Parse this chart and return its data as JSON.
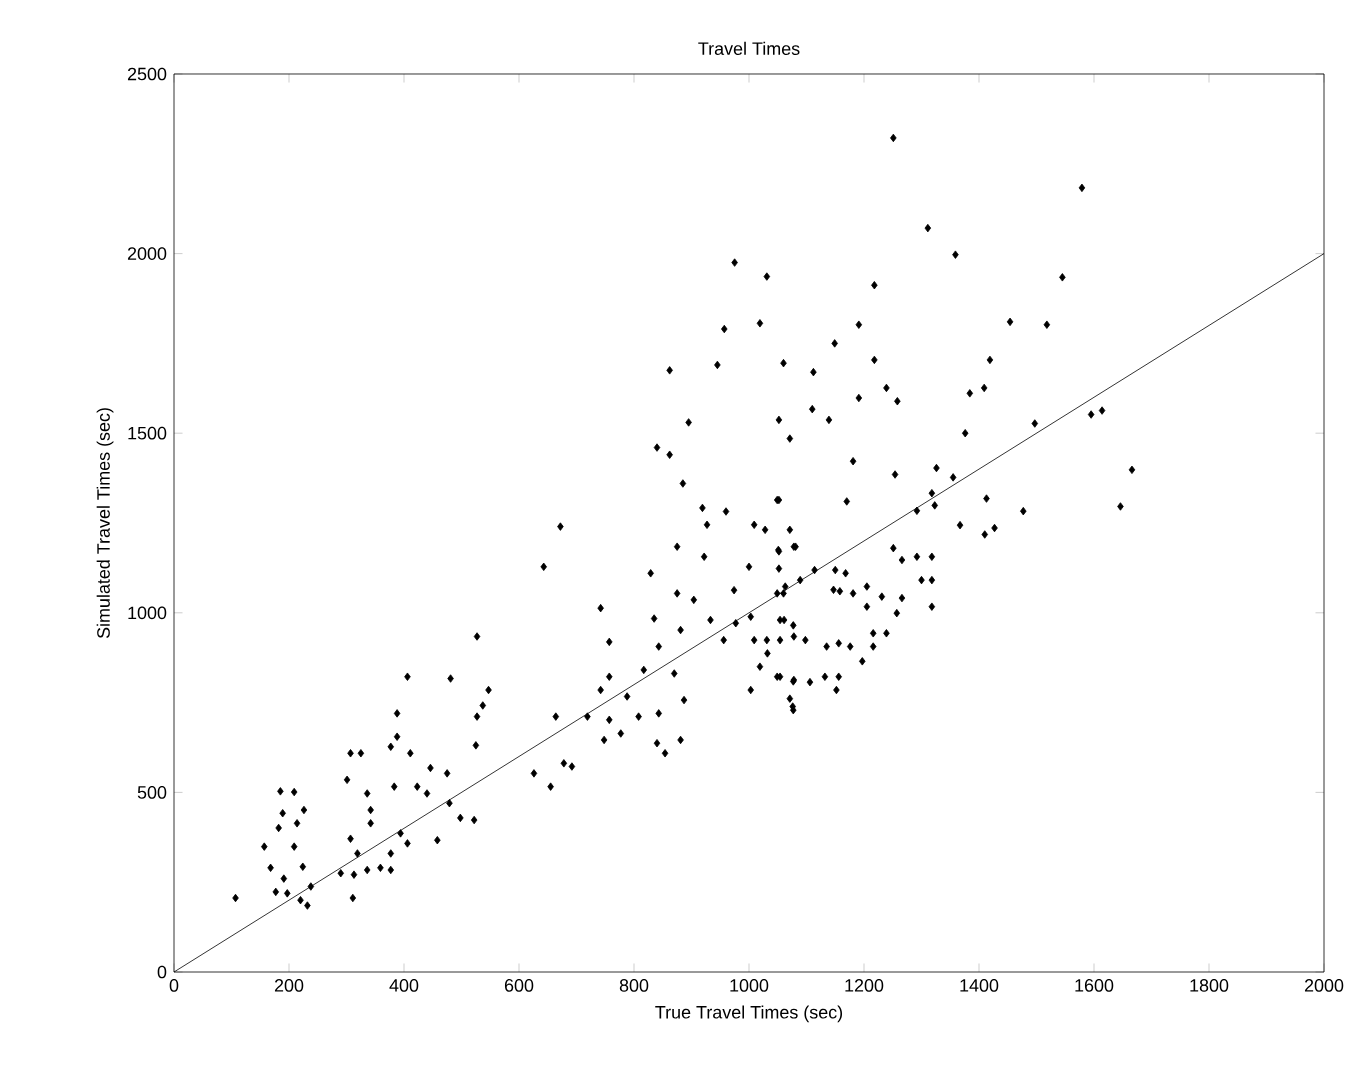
{
  "chart_data": {
    "type": "scatter",
    "title": "Travel Times",
    "xlabel": "True Travel Times (sec)",
    "ylabel": "Simulated Travel Times (sec)",
    "xlim": [
      0,
      2000
    ],
    "ylim": [
      0,
      2500
    ],
    "xticks": [
      0,
      200,
      400,
      600,
      800,
      1000,
      1200,
      1400,
      1600,
      1800,
      2000
    ],
    "yticks": [
      0,
      500,
      1000,
      1500,
      2000,
      2500
    ],
    "grid": false,
    "series": [
      {
        "marker": "diamond",
        "color": "#000000",
        "x": [
          107,
          157,
          168,
          191,
          177,
          197,
          220,
          232,
          238,
          182,
          189,
          185,
          209,
          226,
          214,
          209,
          224,
          307,
          325,
          301,
          336,
          342,
          342,
          307,
          319,
          290,
          313,
          336,
          359,
          377,
          311,
          383,
          388,
          388,
          406,
          377,
          411,
          423,
          440,
          446,
          475,
          479,
          481,
          498,
          522,
          458,
          394,
          406,
          377,
          527,
          527,
          537,
          547,
          525,
          643,
          672,
          664,
          626,
          655,
          678,
          692,
          719,
          742,
          757,
          757,
          742,
          748,
          757,
          777,
          788,
          808,
          817,
          829,
          835,
          843,
          843,
          840,
          854,
          875,
          885,
          875,
          904,
          881,
          870,
          887,
          881,
          922,
          919,
          927,
          960,
          933,
          956,
          974,
          977,
          1003,
          1000,
          1009,
          1028,
          1003,
          1009,
          1032,
          1049,
          1051,
          1078,
          1049,
          1061,
          1078,
          1049,
          1078,
          1076,
          1218,
          1191,
          1149,
          1112,
          1110,
          1139,
          1218,
          1239,
          1258,
          1191,
          1181,
          1170,
          1254,
          1326,
          1355,
          1318,
          1323,
          1292,
          1376,
          1384,
          1409,
          1419,
          1454,
          1518,
          1545,
          1497,
          1595,
          1614,
          1666,
          1646,
          1477,
          1413,
          1367,
          1410,
          1427,
          1251,
          1266,
          1292,
          1318,
          1300,
          1318,
          1318,
          1257,
          1266,
          1231,
          1205,
          1205,
          1181,
          1150,
          1168,
          1147,
          1158,
          1114,
          1089,
          1063,
          1060,
          1081,
          1052,
          1052,
          1054,
          1077,
          1054,
          1098,
          1031,
          1019,
          1054,
          1077,
          1106,
          1132,
          1156,
          1152,
          1135,
          1156,
          1176,
          1197,
          1216,
          1239,
          1216,
          1071,
          1077,
          1071,
          1052,
          1019,
          1031,
          1060,
          1071,
          1052,
          1251,
          1311,
          1359,
          1579,
          975,
          957,
          945,
          862,
          840,
          862,
          895
        ],
        "values": [
          206,
          349,
          290,
          260,
          223,
          219,
          200,
          185,
          238,
          401,
          442,
          503,
          501,
          451,
          414,
          349,
          293,
          609,
          609,
          535,
          497,
          451,
          414,
          371,
          330,
          275,
          271,
          284,
          290,
          284,
          206,
          516,
          720,
          655,
          822,
          627,
          609,
          516,
          497,
          568,
          553,
          470,
          817,
          429,
          423,
          367,
          386,
          358,
          330,
          934,
          711,
          742,
          785,
          631,
          1128,
          1240,
          711,
          553,
          516,
          581,
          572,
          711,
          1013,
          919,
          822,
          785,
          646,
          702,
          664,
          767,
          711,
          841,
          1110,
          984,
          906,
          720,
          637,
          609,
          1184,
          1360,
          1054,
          1036,
          952,
          831,
          757,
          646,
          1156,
          1292,
          1245,
          1282,
          980,
          924,
          1063,
          971,
          989,
          1128,
          1245,
          1231,
          785,
          924,
          887,
          1314,
          1175,
          1184,
          1054,
          980,
          934,
          822,
          813,
          739,
          1912,
          1802,
          1750,
          1670,
          1567,
          1537,
          1704,
          1626,
          1589,
          1598,
          1422,
          1310,
          1385,
          1403,
          1377,
          1333,
          1299,
          1284,
          1500,
          1611,
          1626,
          1704,
          1810,
          1802,
          1934,
          1527,
          1552,
          1563,
          1398,
          1296,
          1283,
          1318,
          1244,
          1218,
          1236,
          1180,
          1147,
          1156,
          1156,
          1091,
          1091,
          1017,
          999,
          1041,
          1045,
          1073,
          1017,
          1054,
          1119,
          1110,
          1064,
          1060,
          1119,
          1091,
          1073,
          1054,
          1184,
          1171,
          1123,
          980,
          965,
          924,
          924,
          924,
          850,
          822,
          809,
          807,
          822,
          822,
          785,
          906,
          915,
          906,
          865,
          906,
          943,
          943,
          761,
          729,
          1231,
          1314,
          1806,
          1936,
          1695,
          1485,
          1537,
          2322,
          2071,
          1997,
          2183,
          1975,
          1790,
          1690,
          1675,
          1460,
          1440,
          1530
        ]
      },
      {
        "type": "line",
        "marker": "none",
        "color": "#000000",
        "x": [
          0,
          2000
        ],
        "values": [
          0,
          2000
        ]
      }
    ]
  }
}
